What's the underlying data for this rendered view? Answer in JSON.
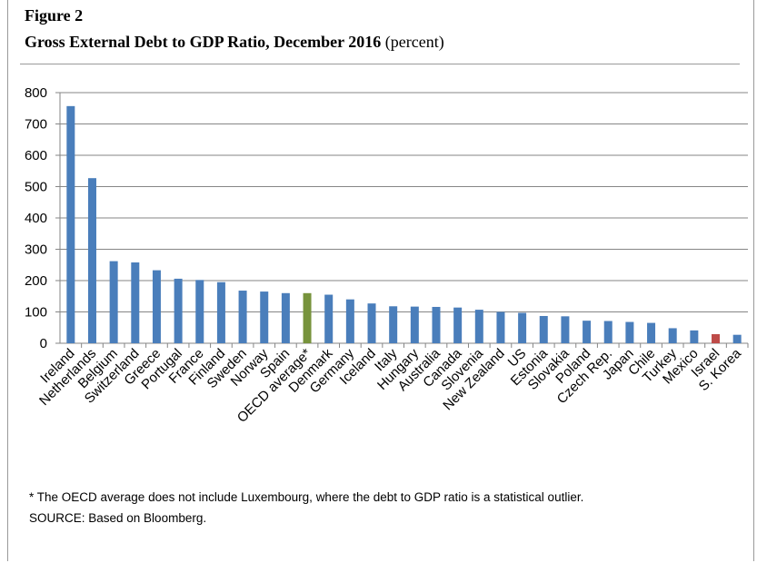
{
  "figure": {
    "label": "Figure 2",
    "title": "Gross External Debt to GDP Ratio, December 2016",
    "title_unit": "(percent)"
  },
  "notes": {
    "footnote": "* The OECD average does not include Luxembourg, where the debt to GDP ratio is a statistical outlier.",
    "source": "SOURCE: Based on Bloomberg."
  },
  "colors": {
    "default_bar": "#4a7ebb",
    "oecd_average_bar": "#77933c",
    "israel_bar": "#be4b48",
    "gridline": "#868686"
  },
  "chart_data": {
    "type": "bar",
    "title": "Gross External Debt to GDP Ratio, December 2016",
    "xlabel": "",
    "ylabel": "",
    "ylim": [
      0,
      800
    ],
    "yticks": [
      0,
      100,
      200,
      300,
      400,
      500,
      600,
      700,
      800
    ],
    "grid": true,
    "legend": "none",
    "categories": [
      "Ireland",
      "Netherlands",
      "Belgium",
      "Switzerland",
      "Greece",
      "Portugal",
      "France",
      "Finland",
      "Sweden",
      "Norway",
      "Spain",
      "OECD average*",
      "Denmark",
      "Germany",
      "Iceland",
      "Italy",
      "Hungary",
      "Australia",
      "Canada",
      "Slovenia",
      "New Zealand",
      "US",
      "Estonia",
      "Slovakia",
      "Poland",
      "Czech Rep.",
      "Japan",
      "Chile",
      "Turkey",
      "Mexico",
      "Israel",
      "S. Korea"
    ],
    "values": [
      757,
      527,
      262,
      258,
      233,
      206,
      202,
      195,
      168,
      165,
      160,
      160,
      155,
      140,
      127,
      118,
      117,
      116,
      114,
      107,
      100,
      97,
      87,
      86,
      72,
      71,
      68,
      65,
      48,
      41,
      29,
      27
    ],
    "highlight": {
      "OECD average*": "#77933c",
      "Israel": "#be4b48"
    }
  }
}
